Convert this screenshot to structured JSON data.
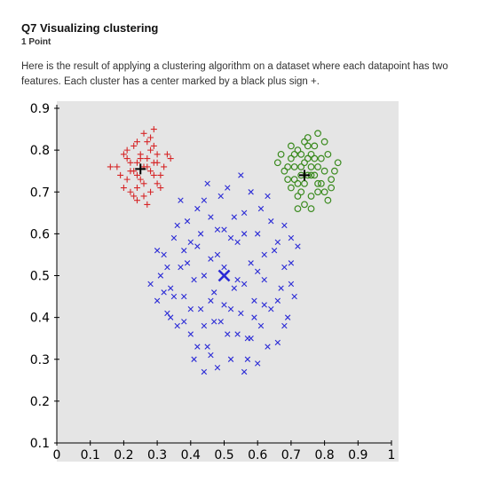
{
  "question": {
    "title": "Q7 Visualizing clustering",
    "points": "1 Point",
    "text": "Here is the result of applying a clustering algorithm on a dataset where each datapoint has two features. Each cluster has a center marked by a black plus sign +."
  },
  "chart_data": {
    "type": "scatter",
    "xlim": [
      0,
      1
    ],
    "ylim": [
      0.1,
      0.9
    ],
    "xticks": [
      "0",
      "0.1",
      "0.2",
      "0.3",
      "0.4",
      "0.5",
      "0.6",
      "0.7",
      "0.8",
      "0.9",
      "1"
    ],
    "yticks": [
      "0.1",
      "0.2",
      "0.3",
      "0.4",
      "0.5",
      "0.6",
      "0.7",
      "0.8",
      "0.9"
    ],
    "xtick_values": [
      0,
      0.1,
      0.2,
      0.3,
      0.4,
      0.5,
      0.6,
      0.7,
      0.8,
      0.9,
      1.0
    ],
    "ytick_values": [
      0.1,
      0.2,
      0.3,
      0.4,
      0.5,
      0.6,
      0.7,
      0.8,
      0.9
    ],
    "background": "#e5e5e5",
    "grid": false,
    "series": [
      {
        "marker": "plus",
        "color": "#d62728",
        "center": [
          0.25,
          0.755
        ],
        "center_marker": "plus",
        "points": [
          [
            0.18,
            0.76
          ],
          [
            0.2,
            0.79
          ],
          [
            0.21,
            0.73
          ],
          [
            0.22,
            0.77
          ],
          [
            0.23,
            0.81
          ],
          [
            0.24,
            0.74
          ],
          [
            0.25,
            0.79
          ],
          [
            0.26,
            0.72
          ],
          [
            0.27,
            0.76
          ],
          [
            0.28,
            0.8
          ],
          [
            0.29,
            0.74
          ],
          [
            0.3,
            0.77
          ],
          [
            0.31,
            0.71
          ],
          [
            0.32,
            0.76
          ],
          [
            0.33,
            0.79
          ],
          [
            0.22,
            0.7
          ],
          [
            0.24,
            0.82
          ],
          [
            0.26,
            0.84
          ],
          [
            0.28,
            0.83
          ],
          [
            0.3,
            0.72
          ],
          [
            0.23,
            0.75
          ],
          [
            0.25,
            0.73
          ],
          [
            0.27,
            0.78
          ],
          [
            0.29,
            0.81
          ],
          [
            0.21,
            0.78
          ],
          [
            0.19,
            0.74
          ],
          [
            0.2,
            0.71
          ],
          [
            0.23,
            0.69
          ],
          [
            0.26,
            0.69
          ],
          [
            0.28,
            0.7
          ],
          [
            0.31,
            0.74
          ],
          [
            0.3,
            0.79
          ],
          [
            0.27,
            0.82
          ],
          [
            0.24,
            0.77
          ],
          [
            0.22,
            0.75
          ],
          [
            0.26,
            0.76
          ],
          [
            0.28,
            0.75
          ],
          [
            0.25,
            0.78
          ],
          [
            0.24,
            0.71
          ],
          [
            0.29,
            0.77
          ],
          [
            0.16,
            0.76
          ],
          [
            0.34,
            0.78
          ],
          [
            0.24,
            0.68
          ],
          [
            0.27,
            0.67
          ],
          [
            0.29,
            0.85
          ],
          [
            0.21,
            0.8
          ]
        ]
      },
      {
        "marker": "circle",
        "color": "#3a8a1e",
        "center": [
          0.74,
          0.74
        ],
        "center_marker": "plus",
        "points": [
          [
            0.66,
            0.77
          ],
          [
            0.68,
            0.75
          ],
          [
            0.7,
            0.78
          ],
          [
            0.71,
            0.73
          ],
          [
            0.72,
            0.8
          ],
          [
            0.73,
            0.76
          ],
          [
            0.74,
            0.72
          ],
          [
            0.75,
            0.78
          ],
          [
            0.76,
            0.74
          ],
          [
            0.77,
            0.81
          ],
          [
            0.78,
            0.76
          ],
          [
            0.79,
            0.72
          ],
          [
            0.8,
            0.75
          ],
          [
            0.81,
            0.79
          ],
          [
            0.82,
            0.73
          ],
          [
            0.7,
            0.71
          ],
          [
            0.72,
            0.69
          ],
          [
            0.74,
            0.67
          ],
          [
            0.76,
            0.69
          ],
          [
            0.78,
            0.7
          ],
          [
            0.8,
            0.7
          ],
          [
            0.69,
            0.76
          ],
          [
            0.71,
            0.76
          ],
          [
            0.73,
            0.79
          ],
          [
            0.75,
            0.81
          ],
          [
            0.77,
            0.78
          ],
          [
            0.79,
            0.78
          ],
          [
            0.73,
            0.74
          ],
          [
            0.75,
            0.74
          ],
          [
            0.77,
            0.74
          ],
          [
            0.74,
            0.77
          ],
          [
            0.76,
            0.76
          ],
          [
            0.72,
            0.72
          ],
          [
            0.78,
            0.72
          ],
          [
            0.67,
            0.79
          ],
          [
            0.75,
            0.83
          ],
          [
            0.78,
            0.84
          ],
          [
            0.84,
            0.77
          ],
          [
            0.81,
            0.68
          ],
          [
            0.72,
            0.66
          ],
          [
            0.76,
            0.66
          ],
          [
            0.83,
            0.75
          ],
          [
            0.7,
            0.81
          ],
          [
            0.74,
            0.82
          ],
          [
            0.8,
            0.82
          ],
          [
            0.82,
            0.71
          ],
          [
            0.69,
            0.73
          ],
          [
            0.71,
            0.79
          ],
          [
            0.76,
            0.79
          ],
          [
            0.73,
            0.7
          ]
        ]
      },
      {
        "marker": "x",
        "color": "#2b2bd6",
        "center": [
          0.5,
          0.5
        ],
        "center_marker": "x",
        "points": [
          [
            0.28,
            0.48
          ],
          [
            0.3,
            0.44
          ],
          [
            0.31,
            0.5
          ],
          [
            0.32,
            0.55
          ],
          [
            0.33,
            0.41
          ],
          [
            0.34,
            0.47
          ],
          [
            0.35,
            0.59
          ],
          [
            0.36,
            0.38
          ],
          [
            0.37,
            0.52
          ],
          [
            0.38,
            0.45
          ],
          [
            0.39,
            0.63
          ],
          [
            0.4,
            0.36
          ],
          [
            0.41,
            0.49
          ],
          [
            0.42,
            0.57
          ],
          [
            0.43,
            0.42
          ],
          [
            0.44,
            0.68
          ],
          [
            0.45,
            0.33
          ],
          [
            0.46,
            0.54
          ],
          [
            0.47,
            0.46
          ],
          [
            0.48,
            0.61
          ],
          [
            0.49,
            0.39
          ],
          [
            0.5,
            0.52
          ],
          [
            0.51,
            0.71
          ],
          [
            0.52,
            0.3
          ],
          [
            0.53,
            0.47
          ],
          [
            0.54,
            0.58
          ],
          [
            0.55,
            0.41
          ],
          [
            0.56,
            0.65
          ],
          [
            0.57,
            0.35
          ],
          [
            0.58,
            0.53
          ],
          [
            0.59,
            0.44
          ],
          [
            0.6,
            0.6
          ],
          [
            0.61,
            0.38
          ],
          [
            0.62,
            0.49
          ],
          [
            0.63,
            0.69
          ],
          [
            0.64,
            0.42
          ],
          [
            0.65,
            0.56
          ],
          [
            0.66,
            0.34
          ],
          [
            0.67,
            0.47
          ],
          [
            0.68,
            0.62
          ],
          [
            0.69,
            0.4
          ],
          [
            0.7,
            0.53
          ],
          [
            0.71,
            0.45
          ],
          [
            0.72,
            0.57
          ],
          [
            0.36,
            0.62
          ],
          [
            0.38,
            0.56
          ],
          [
            0.4,
            0.42
          ],
          [
            0.42,
            0.33
          ],
          [
            0.44,
            0.5
          ],
          [
            0.46,
            0.64
          ],
          [
            0.48,
            0.28
          ],
          [
            0.5,
            0.43
          ],
          [
            0.52,
            0.59
          ],
          [
            0.54,
            0.36
          ],
          [
            0.56,
            0.48
          ],
          [
            0.58,
            0.7
          ],
          [
            0.6,
            0.29
          ],
          [
            0.62,
            0.55
          ],
          [
            0.64,
            0.63
          ],
          [
            0.66,
            0.44
          ],
          [
            0.68,
            0.38
          ],
          [
            0.7,
            0.59
          ],
          [
            0.33,
            0.52
          ],
          [
            0.35,
            0.45
          ],
          [
            0.45,
            0.72
          ],
          [
            0.55,
            0.74
          ],
          [
            0.47,
            0.39
          ],
          [
            0.53,
            0.64
          ],
          [
            0.43,
            0.6
          ],
          [
            0.57,
            0.3
          ],
          [
            0.49,
            0.69
          ],
          [
            0.51,
            0.36
          ],
          [
            0.39,
            0.53
          ],
          [
            0.61,
            0.66
          ],
          [
            0.41,
            0.3
          ],
          [
            0.59,
            0.4
          ],
          [
            0.37,
            0.68
          ],
          [
            0.63,
            0.33
          ],
          [
            0.46,
            0.44
          ],
          [
            0.54,
            0.49
          ],
          [
            0.48,
            0.55
          ],
          [
            0.52,
            0.42
          ],
          [
            0.44,
            0.38
          ],
          [
            0.56,
            0.6
          ],
          [
            0.4,
            0.58
          ],
          [
            0.6,
            0.51
          ],
          [
            0.34,
            0.4
          ],
          [
            0.66,
            0.58
          ],
          [
            0.3,
            0.56
          ],
          [
            0.7,
            0.48
          ],
          [
            0.42,
            0.66
          ],
          [
            0.58,
            0.35
          ],
          [
            0.5,
            0.61
          ],
          [
            0.46,
            0.31
          ],
          [
            0.62,
            0.43
          ],
          [
            0.38,
            0.39
          ],
          [
            0.68,
            0.52
          ],
          [
            0.32,
            0.46
          ],
          [
            0.44,
            0.27
          ],
          [
            0.56,
            0.27
          ]
        ]
      }
    ]
  }
}
